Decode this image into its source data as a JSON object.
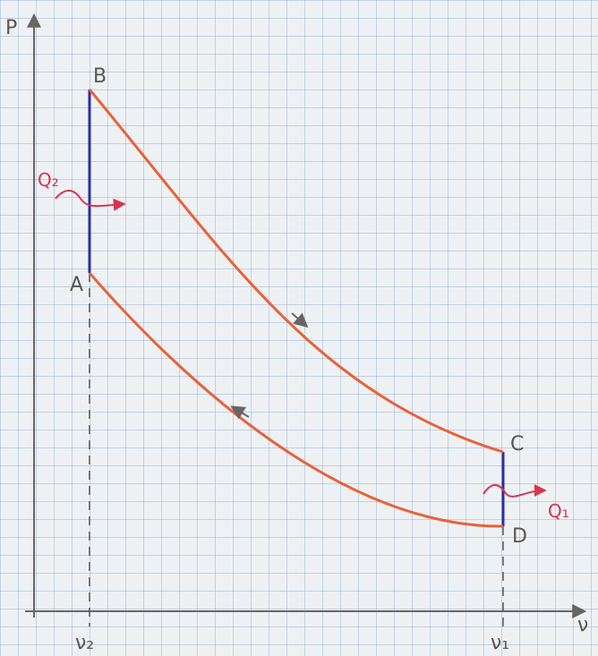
{
  "axes": {
    "y_label": "P",
    "x_label": "ν"
  },
  "states": [
    {
      "label": "B"
    },
    {
      "label": "A"
    },
    {
      "label": "C"
    },
    {
      "label": "D"
    }
  ],
  "heat": [
    {
      "label": "Q₂"
    },
    {
      "label": "Q₁"
    }
  ],
  "volumes": [
    {
      "label": "ν₂"
    },
    {
      "label": "ν₁"
    }
  ]
}
